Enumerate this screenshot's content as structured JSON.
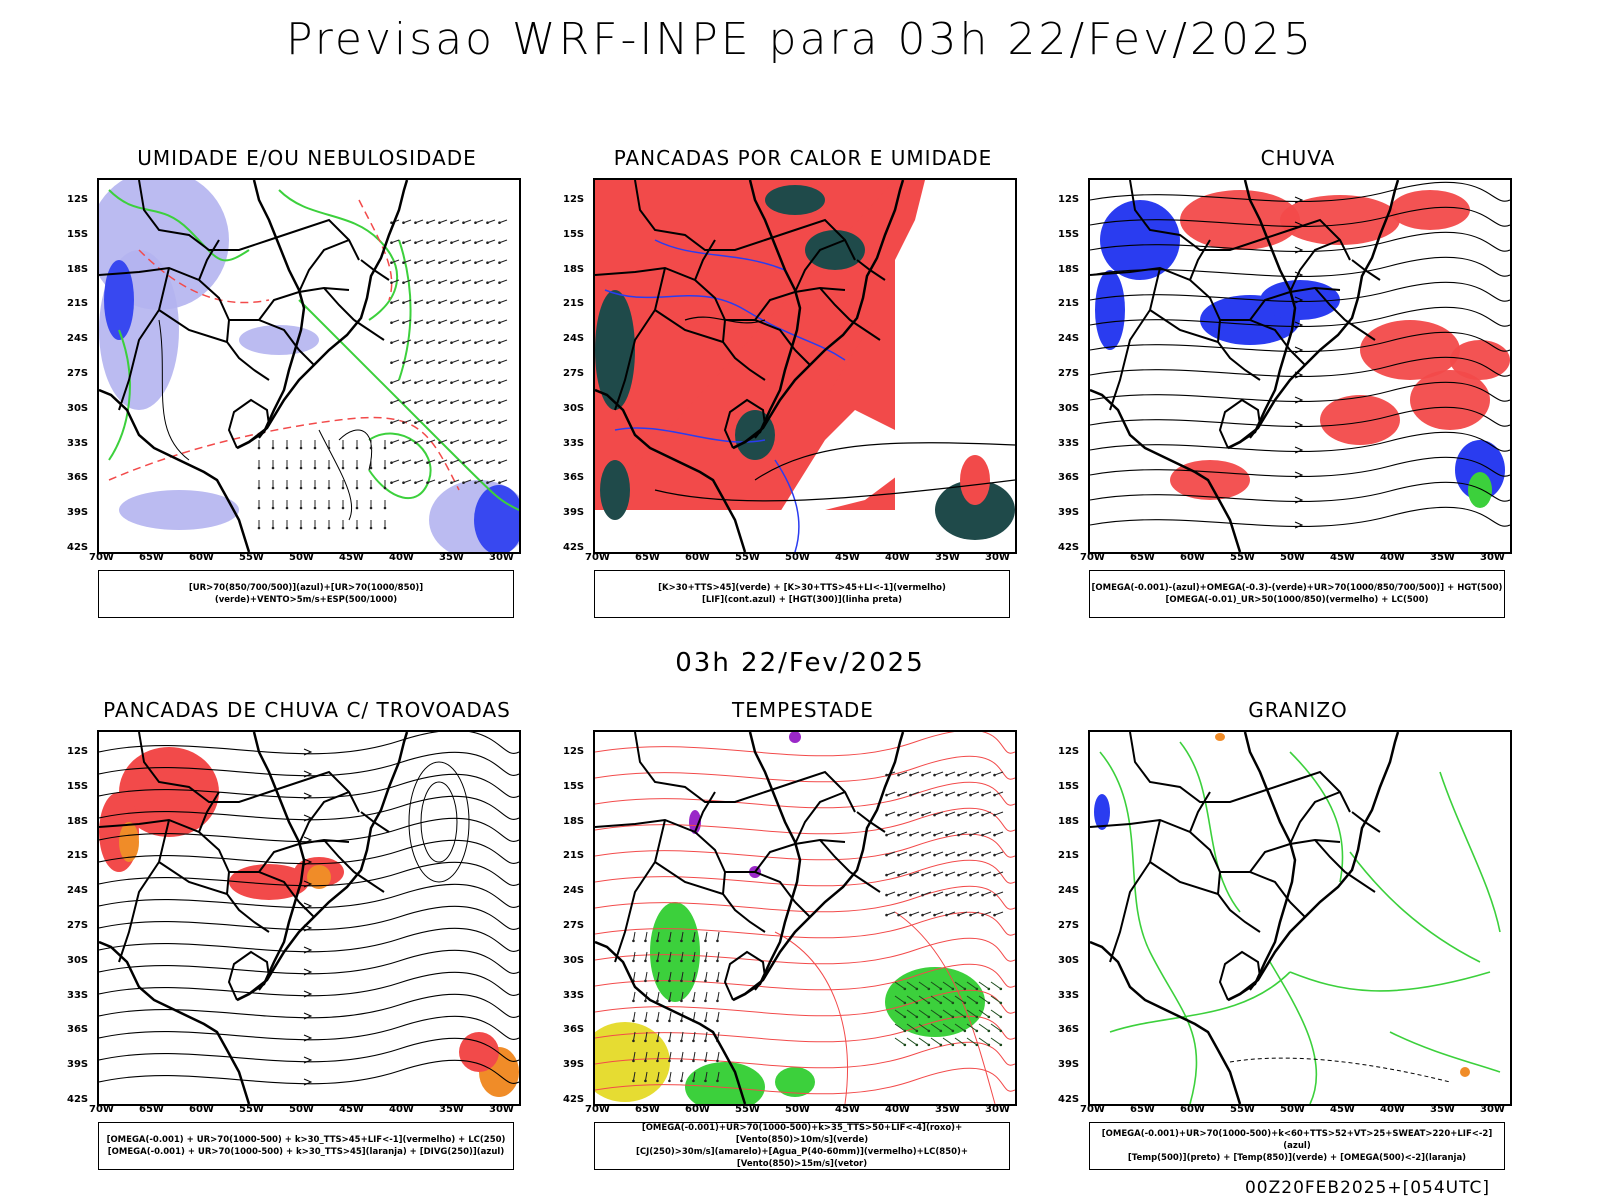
{
  "header": {
    "title": "Previsao WRF-INPE  para 03h 22/Fev/2025"
  },
  "middle": {
    "title": "03h 22/Fev/2025"
  },
  "footer": {
    "stamp": "00Z20FEB2025+[054UTC]"
  },
  "axes": {
    "lat": [
      "12S",
      "15S",
      "18S",
      "21S",
      "24S",
      "27S",
      "30S",
      "33S",
      "36S",
      "39S",
      "42S"
    ],
    "lon": [
      "70W",
      "65W",
      "60W",
      "55W",
      "50W",
      "45W",
      "40W",
      "35W",
      "30W"
    ]
  },
  "colors": {
    "red": "#f24a4a",
    "green": "#3cd03c",
    "blue": "#2a3cf0",
    "lightblue": "#b4b4f0",
    "darkteal": "#1f4a4a",
    "yellow": "#e6dc32",
    "orange": "#f08c28",
    "purple": "#9a28c8"
  },
  "panels": [
    {
      "title": "UMIDADE E/OU NEBULOSIDADE",
      "legend": [
        "[UR>70(850/700/500)](azul)+[UR>70(1000/850)](verde)+VENTO>5m/s+ESP(500/1000)"
      ]
    },
    {
      "title": "PANCADAS POR CALOR E UMIDADE",
      "legend": [
        "[K>30+TTS>45](verde) + [K>30+TTS>45+LI<-1](vermelho)",
        "[LIF](cont.azul) + [HGT(300)](linha preta)"
      ]
    },
    {
      "title": "CHUVA",
      "legend": [
        "[OMEGA(-0.001)-(azul)+OMEGA(-0.3)-(verde)+UR>70(1000/850/700/500)] + HGT(500)",
        "[OMEGA(-0.01)_UR>50(1000/850)(vermelho) + LC(500)"
      ]
    },
    {
      "title": "PANCADAS DE CHUVA C/ TROVOADAS",
      "legend": [
        "[OMEGA(-0.001) + UR>70(1000-500) + k>30_TTS>45+LIF<-1](vermelho) + LC(250)",
        "[OMEGA(-0.001) + UR>70(1000-500) + k>30_TTS>45](laranja) + [DIVG(250)](azul)"
      ]
    },
    {
      "title": "TEMPESTADE",
      "legend": [
        "[OMEGA(-0.001)+UR>70(1000-500)+k>35_TTS>50+LIF<-4](roxo)+[Vento(850)>10m/s](verde)",
        "[CJ(250)>30m/s](amarelo)+[Agua_P(40-60mm)](vermelho)+LC(850)+[Vento(850)>15m/s](vetor)"
      ]
    },
    {
      "title": "GRANIZO",
      "legend": [
        "[OMEGA(-0.001)+UR>70(1000-500)+k<60+TTS>52+VT>25+SWEAT>220+LIF<-2](azul)",
        "[Temp(500)](preto) + [Temp(850)](verde) + [OMEGA(500)<-2](laranja)"
      ]
    }
  ]
}
